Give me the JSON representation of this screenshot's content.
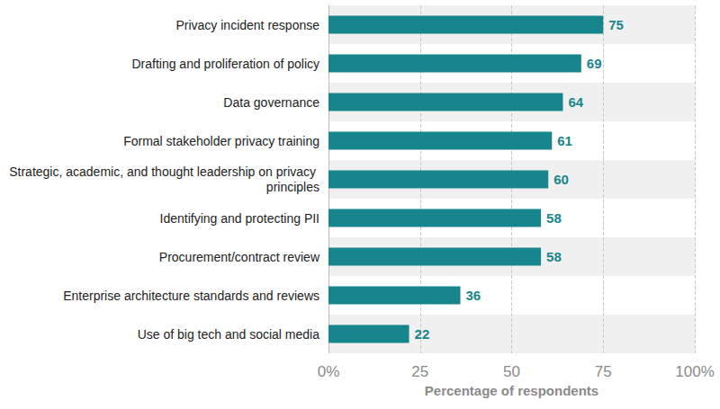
{
  "chart_data": {
    "type": "bar",
    "orientation": "horizontal",
    "categories": [
      "Privacy incident response",
      "Drafting and proliferation of policy",
      "Data governance",
      "Formal stakeholder privacy training",
      "Strategic, academic, and thought leadership on privacy principles",
      "Identifying and protecting PII",
      "Procurement/contract review",
      "Enterprise architecture standards and reviews",
      "Use of big tech and social media"
    ],
    "values": [
      75,
      69,
      64,
      61,
      60,
      58,
      58,
      36,
      22
    ],
    "color": "#17868c",
    "x_label": "Percentage of respondents",
    "xlim": [
      0,
      100
    ],
    "xticks": [
      {
        "value": 0,
        "label": "0%"
      },
      25,
      50,
      75,
      {
        "value": 100,
        "label": "100%"
      }
    ],
    "grid": true,
    "data_labels": true
  }
}
